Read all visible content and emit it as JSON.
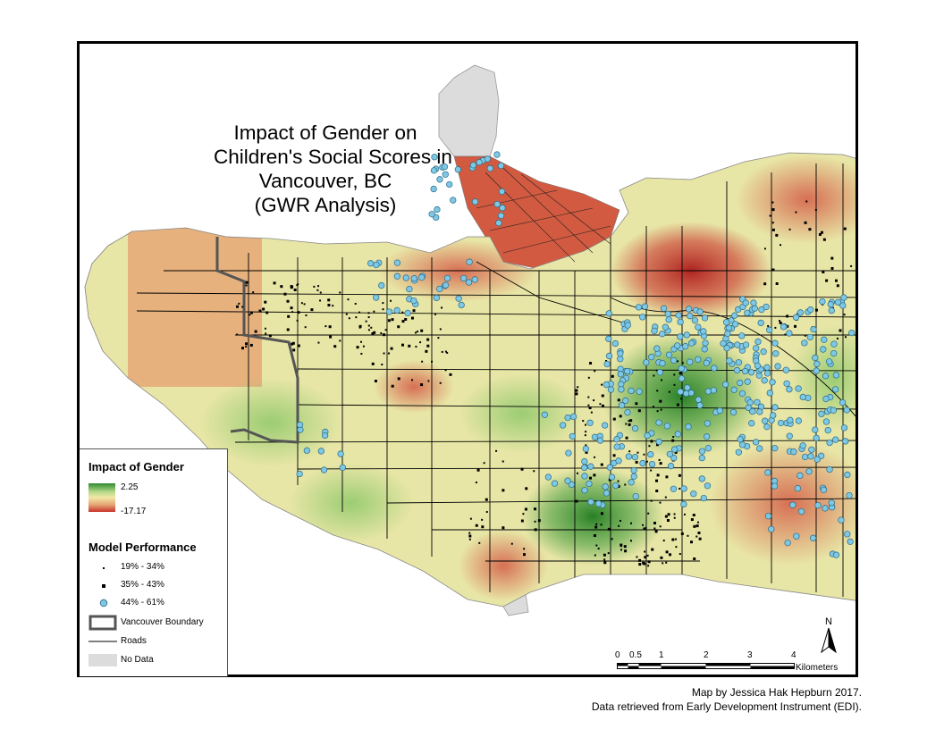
{
  "title_lines": [
    "Impact of Gender on",
    "Children's Social Scores in",
    "Vancouver, BC",
    "(GWR Analysis)"
  ],
  "legend": {
    "gender_heading": "Impact of Gender",
    "gradient_high": "2.25",
    "gradient_low": "-17.17",
    "gradient_colors": [
      "#2e8b2e",
      "#b5d98a",
      "#f3e7a6",
      "#e4a575",
      "#c8322a"
    ],
    "performance_heading": "Model Performance",
    "classes": [
      {
        "label": "19% - 34%",
        "symbol": "small-dot"
      },
      {
        "label": "35% - 43%",
        "symbol": "square-dot"
      },
      {
        "label": "44% - 61%",
        "symbol": "blue-circle",
        "color": "#7ec8e3"
      }
    ],
    "boundary_label": "Vancouver Boundary",
    "roads_label": "Roads",
    "nodata_label": "No Data",
    "nodata_color": "#dcdcdc"
  },
  "scale_bar": {
    "ticks": [
      "0",
      "0.5",
      "1",
      "2",
      "3",
      "4"
    ],
    "units": "Kilometers"
  },
  "north_arrow": {
    "label": "N"
  },
  "credits": {
    "line1": "Map by Jessica Hak Hepburn 2017.",
    "line2": "Data retrieved from Early Development Instrument (EDI)."
  }
}
